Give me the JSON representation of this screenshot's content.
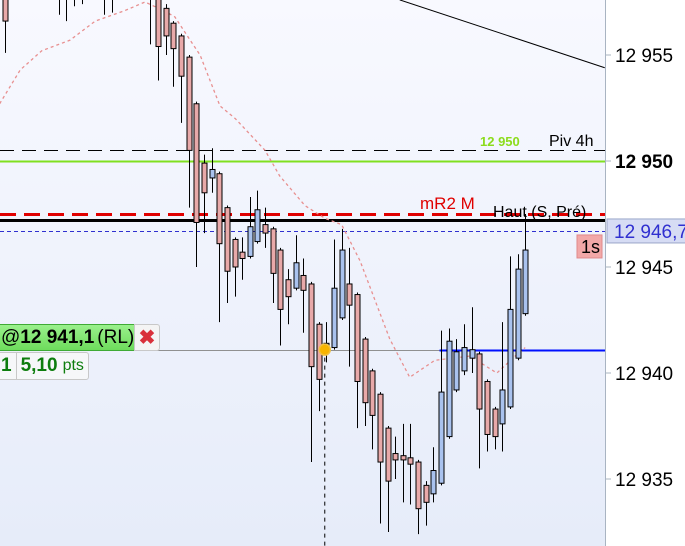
{
  "chart_data": {
    "type": "candlestick",
    "y_axis": {
      "ticks": [
        12955,
        12950,
        12945,
        12940,
        12935
      ],
      "tick_labels": [
        "12 955",
        "12 950",
        "12 945",
        "12 940",
        "12 935"
      ],
      "bold_tick": "12 950",
      "range": [
        12932.2,
        12957.6
      ],
      "position": "right"
    },
    "x_range": [
      -0.7,
      78.4
    ],
    "colors": {
      "bearish": "#e8a9a9",
      "bullish": "#a9c2ee",
      "background_top": "#f8f9ff",
      "background_bottom": "#e6ecf9"
    },
    "candles": [
      [
        12959,
        12959.5,
        12955.1,
        12956.6
      ],
      null,
      null,
      null,
      null,
      null,
      null,
      [
        12959,
        12959.5,
        12956.9,
        12958.5
      ],
      [
        12959,
        12959.5,
        12956.6,
        12958.5
      ],
      [
        12959,
        12959.5,
        12957.3,
        12958.5
      ],
      [
        12959,
        12959.5,
        12957.4,
        12958.5
      ],
      null,
      null,
      [
        12959,
        12959.5,
        12956.9,
        12958.5
      ],
      [
        12959,
        12959.5,
        12957.0,
        12958.5
      ],
      null,
      null,
      null,
      null,
      [
        12959,
        12959.5,
        12955.5,
        12958.5
      ],
      [
        12958.0,
        12958.5,
        12953.8,
        12955.4
      ],
      [
        12957.2,
        12957.4,
        12955.0,
        12955.9
      ],
      [
        12956.5,
        12956.6,
        12953.5,
        12955.3
      ],
      [
        12955.9,
        12956.0,
        12951.8,
        12954.0
      ],
      [
        12954.9,
        12955.0,
        12947.8,
        12950.5
      ],
      [
        12952.7,
        12952.8,
        12945.0,
        12947.1
      ],
      [
        12949.9,
        12950.3,
        12946.6,
        12948.5
      ],
      [
        12949.2,
        12950.6,
        12948.5,
        12949.6
      ],
      [
        12949.4,
        12949.5,
        12942.4,
        12946.1
      ],
      [
        12947.8,
        12947.9,
        12943.3,
        12944.8
      ],
      [
        12946.3,
        12946.4,
        12943.6,
        12945.0
      ],
      [
        12945.7,
        12946.4,
        12944.4,
        12945.4
      ],
      [
        12945.5,
        12948.3,
        12945.4,
        12946.9
      ],
      [
        12946.2,
        12948.6,
        12946.1,
        12947.7
      ],
      [
        12947.0,
        12947.8,
        12945.9,
        12946.6
      ],
      [
        12946.8,
        12946.9,
        12943.3,
        12944.7
      ],
      [
        12945.8,
        12945.9,
        12941.3,
        12943.0
      ],
      [
        12944.4,
        12944.9,
        12942.3,
        12943.6
      ],
      [
        12944.0,
        12946.5,
        12943.9,
        12945.2
      ],
      [
        12944.6,
        12945.4,
        12941.9,
        12943.9
      ],
      [
        12944.2,
        12944.3,
        12935.8,
        12940.3
      ],
      [
        12942.3,
        12942.4,
        12938.2,
        12939.7
      ],
      [
        12941.0,
        12942.4,
        12940.5,
        12941.4
      ],
      [
        12941.2,
        12946.3,
        12941.1,
        12944.0
      ],
      [
        12942.6,
        12946.8,
        12942.5,
        12945.8
      ],
      [
        12944.2,
        12945.9,
        12940.3,
        12943.2
      ],
      [
        12943.7,
        12943.8,
        12937.4,
        12939.6
      ],
      [
        12941.6,
        12941.7,
        12937.5,
        12938.6
      ],
      [
        12940.1,
        12940.2,
        12936.4,
        12938.0
      ],
      [
        12939.0,
        12939.1,
        12932.9,
        12935.8
      ],
      [
        12937.4,
        12937.5,
        12932.5,
        12934.9
      ],
      [
        12936.2,
        12937.0,
        12935.0,
        12935.9
      ],
      [
        12936.1,
        12937.6,
        12933.9,
        12935.9
      ],
      [
        12936.0,
        12937.6,
        12933.8,
        12935.7
      ],
      [
        12935.8,
        12935.9,
        12932.4,
        12933.6
      ],
      [
        12934.7,
        12934.9,
        12932.8,
        12933.9
      ],
      [
        12934.3,
        12936.5,
        12933.9,
        12935.4
      ],
      [
        12934.8,
        12942.0,
        12934.7,
        12939.1
      ],
      [
        12937.0,
        12942.1,
        12936.9,
        12941.5
      ],
      [
        12939.2,
        12941.6,
        12939.1,
        12941.0
      ],
      [
        12940.1,
        12942.3,
        12939.9,
        12941.2
      ],
      [
        12940.7,
        12943.1,
        12940.0,
        12941.1
      ],
      [
        12940.9,
        12941.0,
        12935.5,
        12938.3
      ],
      [
        12939.6,
        12939.7,
        12936.3,
        12937.1
      ],
      [
        12938.3,
        12938.4,
        12936.4,
        12937.0
      ],
      [
        12937.6,
        12942.4,
        12936.3,
        12939.2
      ],
      [
        12938.4,
        12945.5,
        12938.3,
        12943.0
      ],
      [
        12940.7,
        12945.6,
        12940.6,
        12944.9
      ],
      [
        12942.8,
        12947.5,
        12942.7,
        12945.8
      ]
    ],
    "moving_average": {
      "color": "#e89090",
      "style": "dotted",
      "points": [
        [
          -0.7,
          12952.7
        ],
        [
          2,
          12954.3
        ],
        [
          4.8,
          12955.2
        ],
        [
          8.5,
          12955.7
        ],
        [
          11.8,
          12956.6
        ],
        [
          15.7,
          12957.1
        ],
        [
          18.3,
          12957.5
        ],
        [
          20.7,
          12957.1
        ],
        [
          22.2,
          12956.8
        ],
        [
          24.2,
          12955.7
        ],
        [
          25.5,
          12955.0
        ],
        [
          26.8,
          12953.8
        ],
        [
          28.1,
          12952.6
        ],
        [
          30.1,
          12952.0
        ],
        [
          34,
          12950.5
        ],
        [
          35.9,
          12949.3
        ],
        [
          39.2,
          12947.9
        ],
        [
          41.8,
          12947.3
        ],
        [
          44,
          12947.0
        ],
        [
          46.4,
          12945.3
        ],
        [
          48.4,
          12943.4
        ],
        [
          50.3,
          12941.6
        ],
        [
          52.9,
          12939.8
        ],
        [
          56.2,
          12940.6
        ],
        [
          60.8,
          12940.8
        ],
        [
          63.4,
          12940.2
        ],
        [
          64.3,
          12940.0
        ],
        [
          66.7,
          12940.8
        ],
        [
          68,
          12941.2
        ]
      ]
    },
    "trendline": {
      "color": "#000000",
      "from": [
        51.6,
        12957.6
      ],
      "to": [
        78.4,
        12954.4
      ]
    },
    "levels": [
      {
        "name": "pivot-4h",
        "label": "Piv 4h",
        "price": 12950.5,
        "color": "#000000",
        "style": "dashed"
      },
      {
        "name": "green-level",
        "label": "12 950",
        "price": 12950.0,
        "color": "#80e020",
        "style": "solid"
      },
      {
        "name": "mr2-m",
        "label": "mR2 M",
        "price": 12947.5,
        "color": "#e00000",
        "style": "dashed"
      },
      {
        "name": "haut-s-pre",
        "label": "Haut (S, Pré)",
        "price": 12947.2,
        "color": "#000000",
        "style": "solid"
      },
      {
        "name": "current-price",
        "label": "",
        "price": 12946.7,
        "color": "#3030d0",
        "style": "dashed"
      },
      {
        "name": "order-level",
        "label": "",
        "price": 12941.1,
        "color": "#909090",
        "style": "solid"
      },
      {
        "name": "blue-level",
        "label": "",
        "price": 12941.1,
        "color": "#0010ff",
        "style": "solid",
        "from_index": 56.8
      }
    ],
    "marker": {
      "index": 41.8,
      "price": 12941.1,
      "color": "#f7b400"
    },
    "current_price_label": "12 946,7",
    "timeframe_badge": "1s"
  },
  "order": {
    "at": "@",
    "price": "12 941,1",
    "type": "(RL)",
    "close_icon": "close-x-icon",
    "quantity": "1",
    "distance": "5,10",
    "distance_unit": "pts"
  }
}
